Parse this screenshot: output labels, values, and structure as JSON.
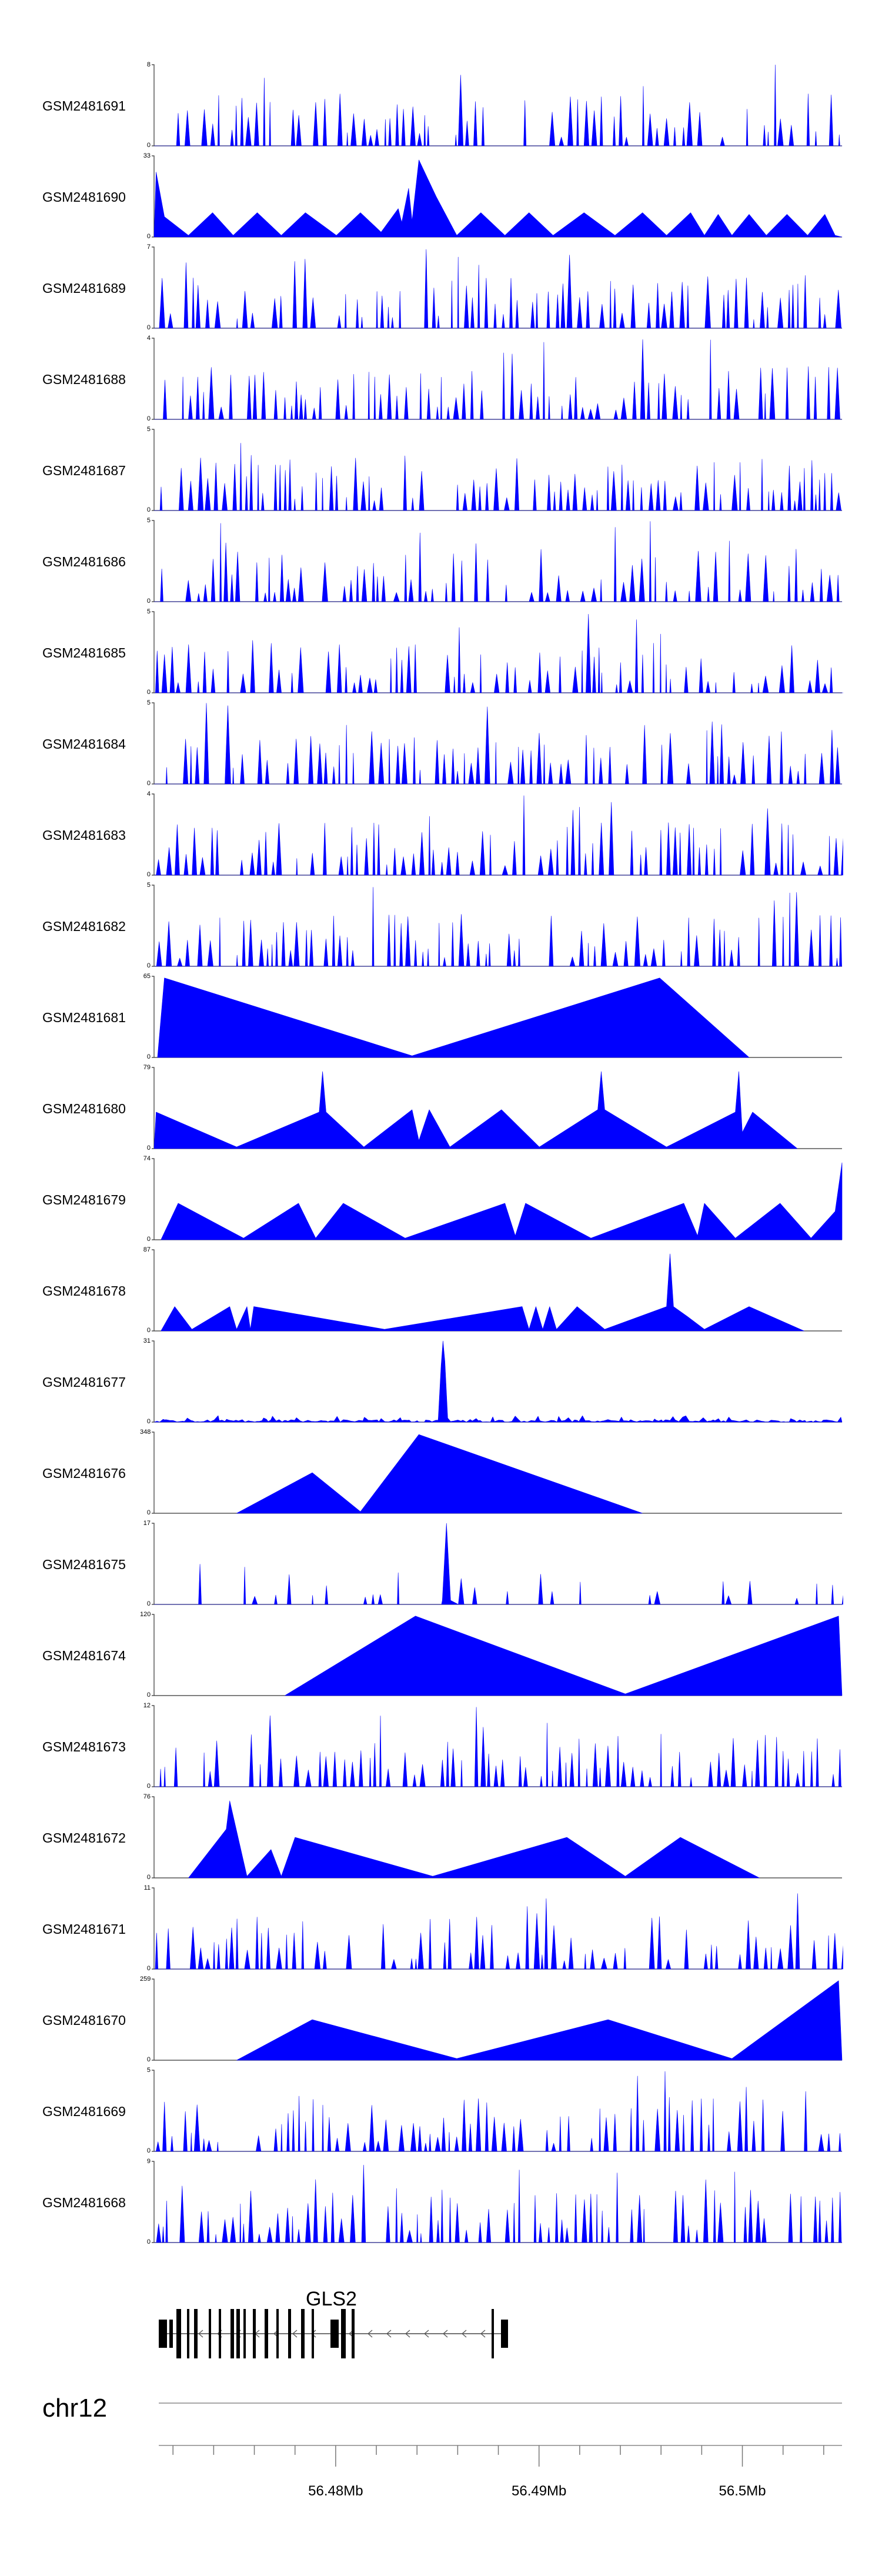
{
  "chart_data": {
    "type": "area",
    "title": "",
    "fill_color": "#0000ff",
    "xlim": [
      56.4713,
      56.5049
    ],
    "x_unit": "Mb",
    "tracks": [
      {
        "name": "GSM2481691",
        "ymax": "8",
        "ymin": "0"
      },
      {
        "name": "GSM2481690",
        "ymax": "33",
        "ymin": "0"
      },
      {
        "name": "GSM2481689",
        "ymax": "7",
        "ymin": "0"
      },
      {
        "name": "GSM2481688",
        "ymax": "4",
        "ymin": "0"
      },
      {
        "name": "GSM2481687",
        "ymax": "5",
        "ymin": "0"
      },
      {
        "name": "GSM2481686",
        "ymax": "5",
        "ymin": "0"
      },
      {
        "name": "GSM2481685",
        "ymax": "5",
        "ymin": "0"
      },
      {
        "name": "GSM2481684",
        "ymax": "5",
        "ymin": "0"
      },
      {
        "name": "GSM2481683",
        "ymax": "4",
        "ymin": "0"
      },
      {
        "name": "GSM2481682",
        "ymax": "5",
        "ymin": "0"
      },
      {
        "name": "GSM2481681",
        "ymax": "65",
        "ymin": "0"
      },
      {
        "name": "GSM2481680",
        "ymax": "79",
        "ymin": "0"
      },
      {
        "name": "GSM2481679",
        "ymax": "74",
        "ymin": "0"
      },
      {
        "name": "GSM2481678",
        "ymax": "87",
        "ymin": "0"
      },
      {
        "name": "GSM2481677",
        "ymax": "31",
        "ymin": "0"
      },
      {
        "name": "GSM2481676",
        "ymax": "348",
        "ymin": "0"
      },
      {
        "name": "GSM2481675",
        "ymax": "17",
        "ymin": "0"
      },
      {
        "name": "GSM2481674",
        "ymax": "120",
        "ymin": "0"
      },
      {
        "name": "GSM2481673",
        "ymax": "12",
        "ymin": "0"
      },
      {
        "name": "GSM2481672",
        "ymax": "76",
        "ymin": "0"
      },
      {
        "name": "GSM2481671",
        "ymax": "11",
        "ymin": "0"
      },
      {
        "name": "GSM2481670",
        "ymax": "259",
        "ymin": "0"
      },
      {
        "name": "GSM2481669",
        "ymax": "5",
        "ymin": "0"
      },
      {
        "name": "GSM2481668",
        "ymax": "9",
        "ymin": "0"
      }
    ],
    "gene": {
      "name": "GLS2"
    },
    "chromosome": "chr12",
    "axis_labels": [
      {
        "label": "56.48Mb",
        "value": 56.48
      },
      {
        "label": "56.49Mb",
        "value": 56.49
      },
      {
        "label": "56.5Mb",
        "value": 56.5
      }
    ]
  }
}
